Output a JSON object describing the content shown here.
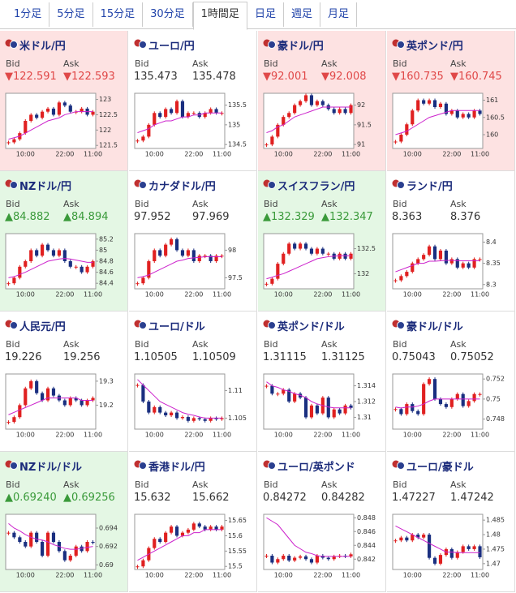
{
  "tabs": {
    "items": [
      "1分足",
      "5分足",
      "15分足",
      "30分足",
      "1時間足",
      "日足",
      "週足",
      "月足"
    ],
    "selected": 4
  },
  "bid_label": "Bid",
  "ask_label": "Ask",
  "quotes": [
    {
      "name": "米ドル/円",
      "status": "down",
      "arrow": "▼",
      "bid": "122.591",
      "ask": "122.593",
      "chart": {
        "ylim": [
          121.4,
          123.2
        ],
        "yticks": [
          123,
          122.5,
          122,
          121.5
        ],
        "categories": [
          null,
          null,
          null,
          "10:00",
          null,
          null,
          null,
          null,
          null,
          null,
          "22:00",
          null,
          null,
          null,
          null,
          "11:00"
        ],
        "close": [
          121.6,
          121.7,
          121.9,
          122.3,
          122.5,
          122.4,
          122.6,
          122.7,
          122.5,
          122.9,
          122.8,
          122.6,
          122.6,
          122.7,
          122.5,
          122.6
        ],
        "ma": [
          121.7,
          121.75,
          121.8,
          121.9,
          122.0,
          122.1,
          122.2,
          122.3,
          122.35,
          122.4,
          122.5,
          122.55,
          122.6,
          122.6,
          122.6,
          122.6
        ]
      }
    },
    {
      "name": "ユーロ/円",
      "status": null,
      "arrow": null,
      "bid": "135.473",
      "ask": "135.478",
      "chart": {
        "ylim": [
          134.4,
          135.8
        ],
        "yticks": [
          135.5,
          135,
          134.5
        ],
        "categories": [
          null,
          null,
          null,
          "10:00",
          null,
          null,
          null,
          null,
          null,
          null,
          "22:00",
          null,
          null,
          null,
          null,
          "11:00"
        ],
        "close": [
          134.6,
          134.7,
          135.0,
          135.3,
          135.2,
          135.4,
          135.3,
          135.6,
          135.2,
          135.3,
          135.3,
          135.2,
          135.3,
          135.4,
          135.3,
          135.3
        ],
        "ma": [
          134.8,
          134.85,
          134.9,
          135.0,
          135.05,
          135.1,
          135.1,
          135.15,
          135.2,
          135.2,
          135.25,
          135.25,
          135.3,
          135.3,
          135.3,
          135.3
        ]
      }
    },
    {
      "name": "豪ドル/円",
      "status": "down",
      "arrow": "▼",
      "bid": "92.001",
      "ask": "92.008",
      "chart": {
        "ylim": [
          90.9,
          92.3
        ],
        "yticks": [
          92,
          91.5,
          91
        ],
        "categories": [
          null,
          null,
          null,
          "10:00",
          null,
          null,
          null,
          null,
          null,
          null,
          "22:00",
          null,
          null,
          null,
          null,
          "11:00"
        ],
        "close": [
          91.0,
          91.2,
          91.5,
          91.7,
          91.8,
          92.0,
          92.1,
          92.25,
          92.0,
          92.1,
          92.0,
          91.9,
          91.8,
          91.9,
          91.8,
          92.0
        ],
        "ma": [
          91.3,
          91.35,
          91.45,
          91.5,
          91.6,
          91.7,
          91.75,
          91.8,
          91.85,
          91.9,
          91.95,
          91.95,
          91.95,
          91.95,
          91.95,
          91.95
        ]
      }
    },
    {
      "name": "英ポンド/円",
      "status": "down",
      "arrow": "▼",
      "bid": "160.735",
      "ask": "160.745",
      "chart": {
        "ylim": [
          159.6,
          161.2
        ],
        "yticks": [
          161,
          160.5,
          160
        ],
        "categories": [
          null,
          null,
          null,
          "10:00",
          null,
          null,
          null,
          null,
          null,
          null,
          "22:00",
          null,
          null,
          null,
          null,
          "11:00"
        ],
        "close": [
          159.8,
          160.0,
          160.3,
          160.7,
          161.0,
          160.9,
          161.0,
          160.8,
          160.9,
          160.6,
          160.7,
          160.5,
          160.6,
          160.5,
          160.7,
          160.6
        ],
        "ma": [
          160.0,
          160.05,
          160.1,
          160.2,
          160.3,
          160.4,
          160.5,
          160.55,
          160.6,
          160.65,
          160.7,
          160.7,
          160.7,
          160.7,
          160.7,
          160.7
        ]
      }
    },
    {
      "name": "NZドル/円",
      "status": "up",
      "arrow": "▲",
      "bid": "84.882",
      "ask": "84.894",
      "chart": {
        "ylim": [
          84.3,
          85.3
        ],
        "yticks": [
          85.2,
          85,
          84.8,
          84.6,
          84.4
        ],
        "categories": [
          null,
          null,
          null,
          "10:00",
          null,
          null,
          null,
          null,
          null,
          null,
          "22:00",
          null,
          null,
          null,
          null,
          "11:00"
        ],
        "close": [
          84.4,
          84.5,
          84.7,
          84.8,
          85.0,
          84.9,
          85.1,
          85.0,
          84.9,
          85.0,
          84.8,
          84.7,
          84.7,
          84.6,
          84.7,
          84.8
        ],
        "ma": [
          84.5,
          84.52,
          84.56,
          84.6,
          84.65,
          84.7,
          84.75,
          84.8,
          84.82,
          84.84,
          84.85,
          84.84,
          84.82,
          84.8,
          84.78,
          84.78
        ]
      }
    },
    {
      "name": "カナダドル/円",
      "status": null,
      "arrow": null,
      "bid": "97.952",
      "ask": "97.969",
      "chart": {
        "ylim": [
          97.3,
          98.3
        ],
        "yticks": [
          98,
          97.5
        ],
        "categories": [
          null,
          null,
          null,
          "10:00",
          null,
          null,
          null,
          null,
          null,
          null,
          "22:00",
          null,
          null,
          null,
          null,
          "11:00"
        ],
        "close": [
          97.4,
          97.5,
          97.8,
          98.0,
          97.9,
          98.1,
          98.2,
          98.0,
          97.9,
          98.0,
          97.8,
          97.9,
          97.9,
          97.8,
          97.9,
          97.9
        ],
        "ma": [
          97.5,
          97.52,
          97.55,
          97.6,
          97.65,
          97.7,
          97.75,
          97.8,
          97.82,
          97.85,
          97.86,
          97.87,
          97.88,
          97.88,
          97.88,
          97.88
        ]
      }
    },
    {
      "name": "スイスフラン/円",
      "status": "up",
      "arrow": "▲",
      "bid": "132.329",
      "ask": "132.347",
      "chart": {
        "ylim": [
          131.7,
          132.8
        ],
        "yticks": [
          132.5,
          132
        ],
        "categories": [
          null,
          null,
          null,
          "10:00",
          null,
          null,
          null,
          null,
          null,
          null,
          "22:00",
          null,
          null,
          null,
          null,
          "11:00"
        ],
        "close": [
          131.8,
          131.9,
          132.2,
          132.4,
          132.6,
          132.5,
          132.6,
          132.5,
          132.4,
          132.5,
          132.4,
          132.4,
          132.3,
          132.4,
          132.3,
          132.4
        ],
        "ma": [
          131.9,
          131.93,
          131.97,
          132.0,
          132.05,
          132.1,
          132.15,
          132.2,
          132.25,
          132.3,
          132.32,
          132.34,
          132.35,
          132.36,
          132.36,
          132.36
        ]
      }
    },
    {
      "name": "ランド/円",
      "status": null,
      "arrow": null,
      "bid": "8.363",
      "ask": "8.376",
      "chart": {
        "ylim": [
          8.29,
          8.42
        ],
        "yticks": [
          8.4,
          8.35,
          8.3
        ],
        "categories": [
          null,
          null,
          null,
          "10:00",
          null,
          null,
          null,
          null,
          null,
          null,
          "22:00",
          null,
          null,
          null,
          null,
          "11:00"
        ],
        "close": [
          8.31,
          8.32,
          8.33,
          8.35,
          8.36,
          8.37,
          8.39,
          8.36,
          8.38,
          8.35,
          8.36,
          8.34,
          8.35,
          8.34,
          8.36,
          8.36
        ],
        "ma": [
          8.33,
          8.335,
          8.34,
          8.345,
          8.35,
          8.35,
          8.355,
          8.355,
          8.356,
          8.357,
          8.357,
          8.356,
          8.356,
          8.356,
          8.356,
          8.356
        ]
      }
    },
    {
      "name": "人民元/円",
      "status": null,
      "arrow": null,
      "bid": "19.226",
      "ask": "19.256",
      "chart": {
        "ylim": [
          19.1,
          19.33
        ],
        "yticks": [
          19.3,
          19.2
        ],
        "categories": [
          null,
          null,
          null,
          "10:00",
          null,
          null,
          null,
          null,
          null,
          null,
          "22:00",
          null,
          null,
          null,
          null,
          "11:00"
        ],
        "close": [
          19.13,
          19.15,
          19.2,
          19.27,
          19.3,
          19.25,
          19.22,
          19.27,
          19.24,
          19.22,
          19.2,
          19.23,
          19.22,
          19.2,
          19.22,
          19.23
        ],
        "ma": [
          19.16,
          19.17,
          19.18,
          19.19,
          19.2,
          19.21,
          19.22,
          19.23,
          19.23,
          19.23,
          19.23,
          19.23,
          19.23,
          19.22,
          19.22,
          19.22
        ]
      }
    },
    {
      "name": "ユーロ/ドル",
      "status": null,
      "arrow": null,
      "bid": "1.10505",
      "ask": "1.10509",
      "chart": {
        "ylim": [
          1.103,
          1.113
        ],
        "yticks": [
          1.11,
          1.105
        ],
        "categories": [
          null,
          null,
          null,
          "10:00",
          null,
          null,
          null,
          null,
          null,
          null,
          "22:00",
          null,
          null,
          null,
          null,
          "11:00"
        ],
        "close": [
          1.111,
          1.108,
          1.106,
          1.107,
          1.106,
          1.1055,
          1.106,
          1.105,
          1.1052,
          1.1045,
          1.105,
          1.1048,
          1.1045,
          1.105,
          1.1048,
          1.105
        ],
        "ma": [
          1.112,
          1.111,
          1.11,
          1.109,
          1.108,
          1.1075,
          1.107,
          1.1065,
          1.106,
          1.1057,
          1.1055,
          1.1052,
          1.105,
          1.105,
          1.105,
          1.105
        ]
      }
    },
    {
      "name": "英ポンド/ドル",
      "status": null,
      "arrow": null,
      "bid": "1.31115",
      "ask": "1.31125",
      "chart": {
        "ylim": [
          1.3085,
          1.3155
        ],
        "yticks": [
          1.314,
          1.312,
          1.31
        ],
        "categories": [
          null,
          null,
          null,
          "10:00",
          null,
          null,
          null,
          null,
          null,
          null,
          "22:00",
          null,
          null,
          null,
          null,
          "11:00"
        ],
        "close": [
          1.314,
          1.313,
          1.313,
          1.3135,
          1.312,
          1.313,
          1.3125,
          1.31,
          1.3115,
          1.3105,
          1.3125,
          1.31,
          1.311,
          1.3105,
          1.3115,
          1.3112
        ],
        "ma": [
          1.3145,
          1.314,
          1.3138,
          1.3135,
          1.3133,
          1.313,
          1.3128,
          1.3125,
          1.312,
          1.3117,
          1.3115,
          1.3113,
          1.3112,
          1.3112,
          1.3112,
          1.3112
        ]
      }
    },
    {
      "name": "豪ドル/ドル",
      "status": null,
      "arrow": null,
      "bid": "0.75043",
      "ask": "0.75052",
      "chart": {
        "ylim": [
          0.747,
          0.7525
        ],
        "yticks": [
          0.752,
          0.75,
          0.748
        ],
        "categories": [
          null,
          null,
          null,
          "10:00",
          null,
          null,
          null,
          null,
          null,
          null,
          "22:00",
          null,
          null,
          null,
          null,
          "11:00"
        ],
        "close": [
          0.749,
          0.7485,
          0.7495,
          0.7488,
          0.7485,
          0.7515,
          0.752,
          0.75,
          0.7495,
          0.7492,
          0.75,
          0.7505,
          0.7493,
          0.7498,
          0.7505,
          0.7505
        ],
        "ma": [
          0.7492,
          0.7491,
          0.7492,
          0.7492,
          0.7493,
          0.7495,
          0.7498,
          0.75,
          0.75,
          0.75,
          0.75,
          0.75,
          0.75,
          0.75,
          0.75,
          0.75
        ]
      }
    },
    {
      "name": "NZドル/ドル",
      "status": "up",
      "arrow": "▲",
      "bid": "0.69240",
      "ask": "0.69256",
      "chart": {
        "ylim": [
          0.6895,
          0.6955
        ],
        "yticks": [
          0.694,
          0.692,
          0.69
        ],
        "categories": [
          null,
          null,
          null,
          "10:00",
          null,
          null,
          null,
          null,
          null,
          null,
          "22:00",
          null,
          null,
          null,
          null,
          "11:00"
        ],
        "close": [
          0.6935,
          0.693,
          0.6925,
          0.692,
          0.6935,
          0.6925,
          0.691,
          0.6935,
          0.6925,
          0.6915,
          0.6905,
          0.691,
          0.692,
          0.6915,
          0.6925,
          0.6924
        ],
        "ma": [
          0.6945,
          0.694,
          0.6937,
          0.6933,
          0.693,
          0.6928,
          0.6927,
          0.6925,
          0.6922,
          0.692,
          0.6918,
          0.6917,
          0.6917,
          0.6918,
          0.6919,
          0.692
        ]
      }
    },
    {
      "name": "香港ドル/円",
      "status": null,
      "arrow": null,
      "bid": "15.632",
      "ask": "15.662",
      "chart": {
        "ylim": [
          15.49,
          15.67
        ],
        "yticks": [
          15.65,
          15.6,
          15.55,
          15.5
        ],
        "categories": [
          null,
          null,
          null,
          "10:00",
          null,
          null,
          null,
          null,
          null,
          null,
          "22:00",
          null,
          null,
          null,
          null,
          "11:00"
        ],
        "close": [
          15.5,
          15.52,
          15.56,
          15.59,
          15.58,
          15.61,
          15.63,
          15.6,
          15.61,
          15.62,
          15.64,
          15.63,
          15.62,
          15.63,
          15.62,
          15.63
        ],
        "ma": [
          15.52,
          15.53,
          15.54,
          15.55,
          15.56,
          15.57,
          15.58,
          15.59,
          15.6,
          15.6,
          15.61,
          15.61,
          15.62,
          15.62,
          15.62,
          15.62
        ]
      }
    },
    {
      "name": "ユーロ/英ポンド",
      "status": null,
      "arrow": null,
      "bid": "0.84272",
      "ask": "0.84282",
      "chart": {
        "ylim": [
          0.8405,
          0.8485
        ],
        "yticks": [
          0.848,
          0.846,
          0.844,
          0.842
        ],
        "categories": [
          null,
          null,
          null,
          "10:00",
          null,
          null,
          null,
          null,
          null,
          null,
          "22:00",
          null,
          null,
          null,
          null,
          "11:00"
        ],
        "close": [
          0.8425,
          0.8415,
          0.842,
          0.8425,
          0.8418,
          0.8422,
          0.8424,
          0.842,
          0.8415,
          0.8425,
          0.8422,
          0.842,
          0.8424,
          0.8425,
          0.8424,
          0.8427
        ],
        "ma": [
          0.848,
          0.8475,
          0.847,
          0.846,
          0.845,
          0.844,
          0.8435,
          0.843,
          0.8428,
          0.8425,
          0.8424,
          0.8424,
          0.8424,
          0.8424,
          0.8424,
          0.8424
        ]
      }
    },
    {
      "name": "ユーロ/豪ドル",
      "status": null,
      "arrow": null,
      "bid": "1.47227",
      "ask": "1.47242",
      "chart": {
        "ylim": [
          1.468,
          1.487
        ],
        "yticks": [
          1.485,
          1.48,
          1.475,
          1.47
        ],
        "categories": [
          null,
          null,
          null,
          "10:00",
          null,
          null,
          null,
          null,
          null,
          null,
          "22:00",
          null,
          null,
          null,
          null,
          "11:00"
        ],
        "close": [
          1.478,
          1.479,
          1.478,
          1.48,
          1.479,
          1.48,
          1.472,
          1.47,
          1.473,
          1.475,
          1.472,
          1.474,
          1.476,
          1.475,
          1.476,
          1.4722
        ],
        "ma": [
          1.483,
          1.482,
          1.481,
          1.48,
          1.479,
          1.478,
          1.477,
          1.476,
          1.475,
          1.474,
          1.474,
          1.4738,
          1.4738,
          1.4738,
          1.4738,
          1.4738
        ]
      }
    }
  ]
}
